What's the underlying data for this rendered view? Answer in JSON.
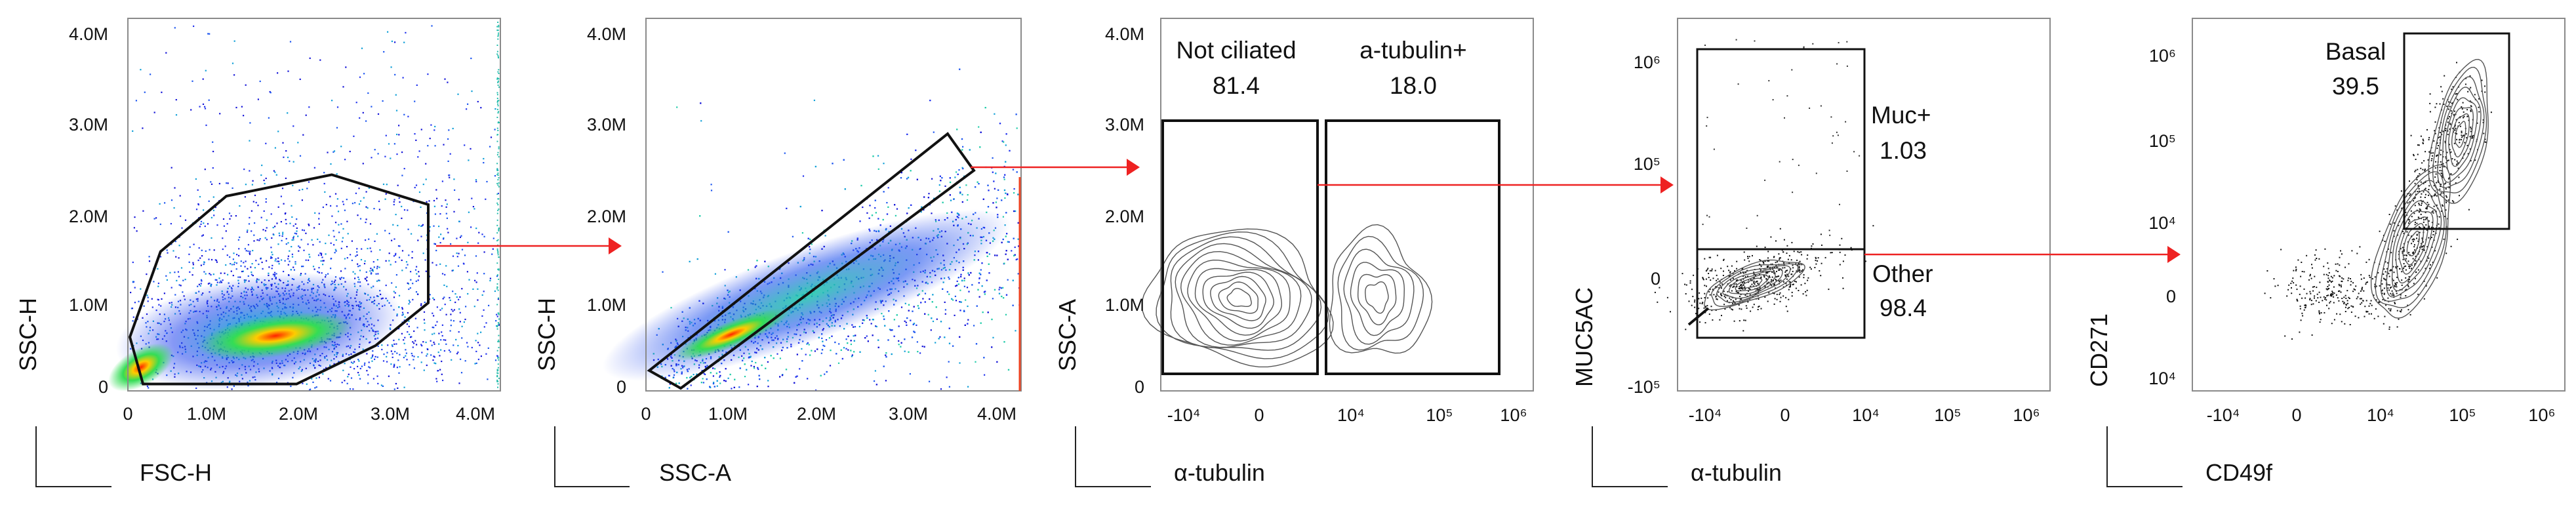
{
  "chart_data": [
    {
      "type": "scatter",
      "subtype": "density-dot-plot",
      "title": "",
      "xlabel": "FSC-H",
      "ylabel": "SSC-H",
      "x_ticks": [
        "0",
        "1.0M",
        "2.0M",
        "3.0M",
        "4.0M"
      ],
      "y_ticks": [
        "0",
        "1.0M",
        "2.0M",
        "3.0M",
        "4.0M"
      ],
      "xlim": [
        0,
        4200000
      ],
      "ylim": [
        -100000,
        4200000
      ],
      "gate": {
        "shape": "polygon",
        "label": "",
        "vertices": [
          [
            0,
            500000
          ],
          [
            350000,
            1500000
          ],
          [
            1100000,
            2150000
          ],
          [
            2300000,
            2400000
          ],
          [
            3400000,
            2050000
          ],
          [
            3400000,
            900000
          ],
          [
            2800000,
            400000
          ],
          [
            1900000,
            -50000
          ],
          [
            150000,
            -50000
          ]
        ]
      },
      "next_panel": 2
    },
    {
      "type": "scatter",
      "subtype": "density-dot-plot",
      "title": "",
      "xlabel": "SSC-A",
      "ylabel": "SSC-H",
      "x_ticks": [
        "0",
        "1.0M",
        "2.0M",
        "3.0M",
        "4.0M"
      ],
      "y_ticks": [
        "0",
        "1.0M",
        "2.0M",
        "3.0M",
        "4.0M"
      ],
      "xlim": [
        0,
        4200000
      ],
      "ylim": [
        -100000,
        4200000
      ],
      "gate": {
        "shape": "polygon",
        "label": "",
        "vertices": [
          [
            0,
            300000
          ],
          [
            3400000,
            2900000
          ],
          [
            3700000,
            2400000
          ],
          [
            400000,
            -150000
          ]
        ]
      },
      "next_panel": 3
    },
    {
      "type": "contour",
      "title": "",
      "xlabel": "α-tubulin",
      "ylabel": "SSC-A",
      "x_ticks": [
        "-10⁴",
        "0",
        "10⁴",
        "10⁵",
        "10⁶"
      ],
      "y_ticks": [
        "0",
        "1.0M",
        "2.0M",
        "3.0M",
        "4.0M"
      ],
      "xscale": "biexponential",
      "ylim": [
        -100000,
        4200000
      ],
      "gates": [
        {
          "label": "Not ciliated",
          "percent": "81.4"
        },
        {
          "label": "a-tubulin+",
          "percent": "18.0"
        }
      ],
      "next_panel": 4
    },
    {
      "type": "scatter",
      "subtype": "contour-with-outliers",
      "title": "",
      "xlabel": "α-tubulin",
      "ylabel": "MUC5AC",
      "x_ticks": [
        "-10⁴",
        "0",
        "10⁴",
        "10⁵",
        "10⁶"
      ],
      "y_ticks": [
        "10⁶",
        "10⁵",
        "0",
        "-10⁵"
      ],
      "xscale": "biexponential",
      "yscale": "biexponential",
      "gates": [
        {
          "label": "Muc+",
          "percent": "1.03"
        },
        {
          "label": "Other",
          "percent": "98.4"
        }
      ],
      "next_panel": 5
    },
    {
      "type": "scatter",
      "subtype": "contour-with-outliers",
      "title": "",
      "xlabel": "CD49f",
      "ylabel": "CD271",
      "x_ticks": [
        "-10⁴",
        "0",
        "10⁴",
        "10⁵",
        "10⁶"
      ],
      "y_ticks": [
        "10⁶",
        "10⁵",
        "10⁴",
        "0",
        "10⁴"
      ],
      "xscale": "biexponential",
      "yscale": "biexponential",
      "gates": [
        {
          "label": "Basal",
          "percent": "39.5"
        }
      ]
    }
  ],
  "colors": {
    "gate_arrow": "#ee2222",
    "density_low": "#1414d8",
    "density_mid": "#11bbcc",
    "density_high": "#ff2200",
    "contour": "#555555",
    "gate_line": "#111111"
  }
}
